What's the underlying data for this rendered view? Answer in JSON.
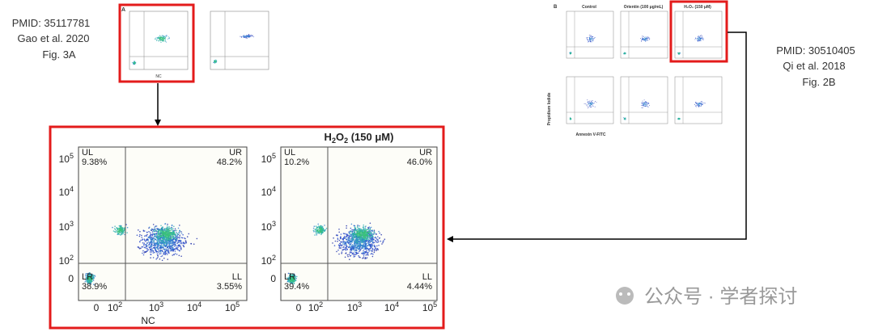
{
  "left_source": {
    "pmid": "PMID: 35117781",
    "authors": "Gao et al. 2020",
    "figure": "Fig. 3A"
  },
  "right_source": {
    "pmid": "PMID: 30510405",
    "authors": "Qi et al. 2018",
    "figure": "Fig. 2B"
  },
  "thumb_a": {
    "panel_letter": "A",
    "x_label": "NC"
  },
  "thumb_b": {
    "panel_letter": "B",
    "titles": [
      "Control",
      "Orientin (100 μg/mL)",
      "H₂O₂ (150 μM)"
    ],
    "y_label": "Propidium Iodide",
    "x_label": "Annexin V-FITC"
  },
  "panels": [
    {
      "x_label": "NC",
      "quadrants": [
        {
          "name": "UL",
          "value": "9.38%"
        },
        {
          "name": "UR",
          "value": "48.2%"
        },
        {
          "name": "LR",
          "value": "38.9%"
        },
        {
          "name": "LL",
          "value": "3.55%"
        }
      ],
      "yticks": [
        {
          "base": "10",
          "exp": "5"
        },
        {
          "base": "10",
          "exp": "4"
        },
        {
          "base": "10",
          "exp": "3"
        },
        {
          "base": "10",
          "exp": "2"
        },
        "0"
      ],
      "xticks": [
        "0",
        {
          "base": "10",
          "exp": "2"
        },
        {
          "base": "10",
          "exp": "3"
        },
        {
          "base": "10",
          "exp": "4"
        },
        {
          "base": "10",
          "exp": "5"
        }
      ]
    },
    {
      "title_parts": [
        "H",
        "2",
        "O",
        "2",
        " (150 μM)"
      ],
      "quadrants": [
        {
          "name": "UL",
          "value": "10.2%"
        },
        {
          "name": "UR",
          "value": "46.0%"
        },
        {
          "name": "LR",
          "value": "39.4%"
        },
        {
          "name": "LL",
          "value": "4.44%"
        }
      ],
      "yticks": [
        {
          "base": "10",
          "exp": "5"
        },
        {
          "base": "10",
          "exp": "4"
        },
        {
          "base": "10",
          "exp": "3"
        },
        {
          "base": "10",
          "exp": "2"
        },
        "0"
      ],
      "xticks": [
        "0",
        {
          "base": "10",
          "exp": "2"
        },
        {
          "base": "10",
          "exp": "3"
        },
        {
          "base": "10",
          "exp": "4"
        },
        {
          "base": "10",
          "exp": "5"
        }
      ]
    }
  ],
  "watermark": "公众号 · 学者探讨"
}
